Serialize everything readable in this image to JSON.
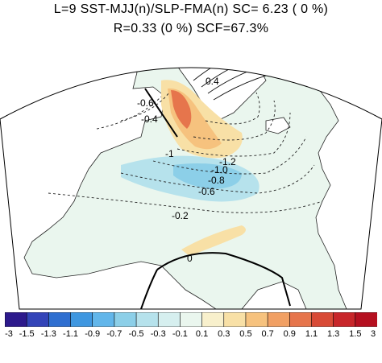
{
  "title_line1": "L=9 SST-MJJ(n)/SLP-FMA(n) SC= 6.23 ( 0 %)",
  "title_line2": "R=0.33 (0 %) SCF=67.3%",
  "contour_labels": [
    "-0.6",
    "-0.4",
    "0.4",
    "-1",
    "-1.2",
    "-1.0",
    "-0.8",
    "-0.6",
    "-0.2",
    "0"
  ],
  "colorbar": {
    "tick_labels": [
      "-3",
      "-1.5",
      "-1.3",
      "-1.1",
      "-0.9",
      "-0.7",
      "-0.5",
      "-0.3",
      "-0.1",
      "0.1",
      "0.3",
      "0.5",
      "0.7",
      "0.9",
      "1.1",
      "1.3",
      "1.5",
      "3"
    ],
    "colors": [
      "#2d1a8c",
      "#3344b8",
      "#2f6fd0",
      "#3f97e0",
      "#62b6ea",
      "#8ccfe8",
      "#b6e2ec",
      "#d6efef",
      "#eaf6ee",
      "#f8f0cc",
      "#f8e0a6",
      "#f6c27e",
      "#f1a064",
      "#e6754c",
      "#d84a36",
      "#c8262a",
      "#b51020"
    ]
  }
}
